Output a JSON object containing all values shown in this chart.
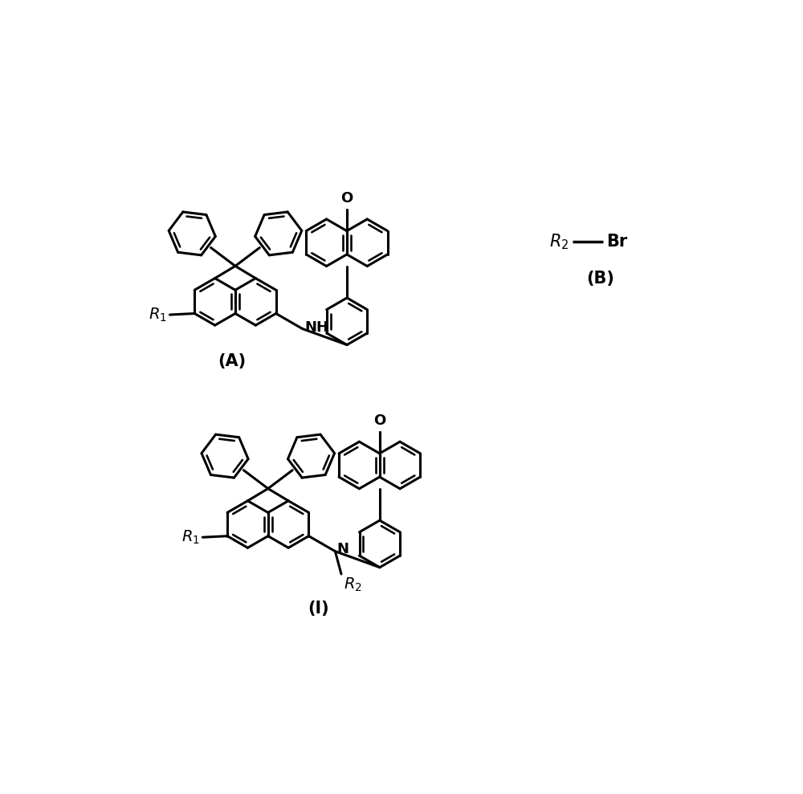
{
  "bg": "#ffffff",
  "lw": 2.2,
  "R": 0.38,
  "label_A": "(A)",
  "label_B": "(B)",
  "label_I": "(I)"
}
